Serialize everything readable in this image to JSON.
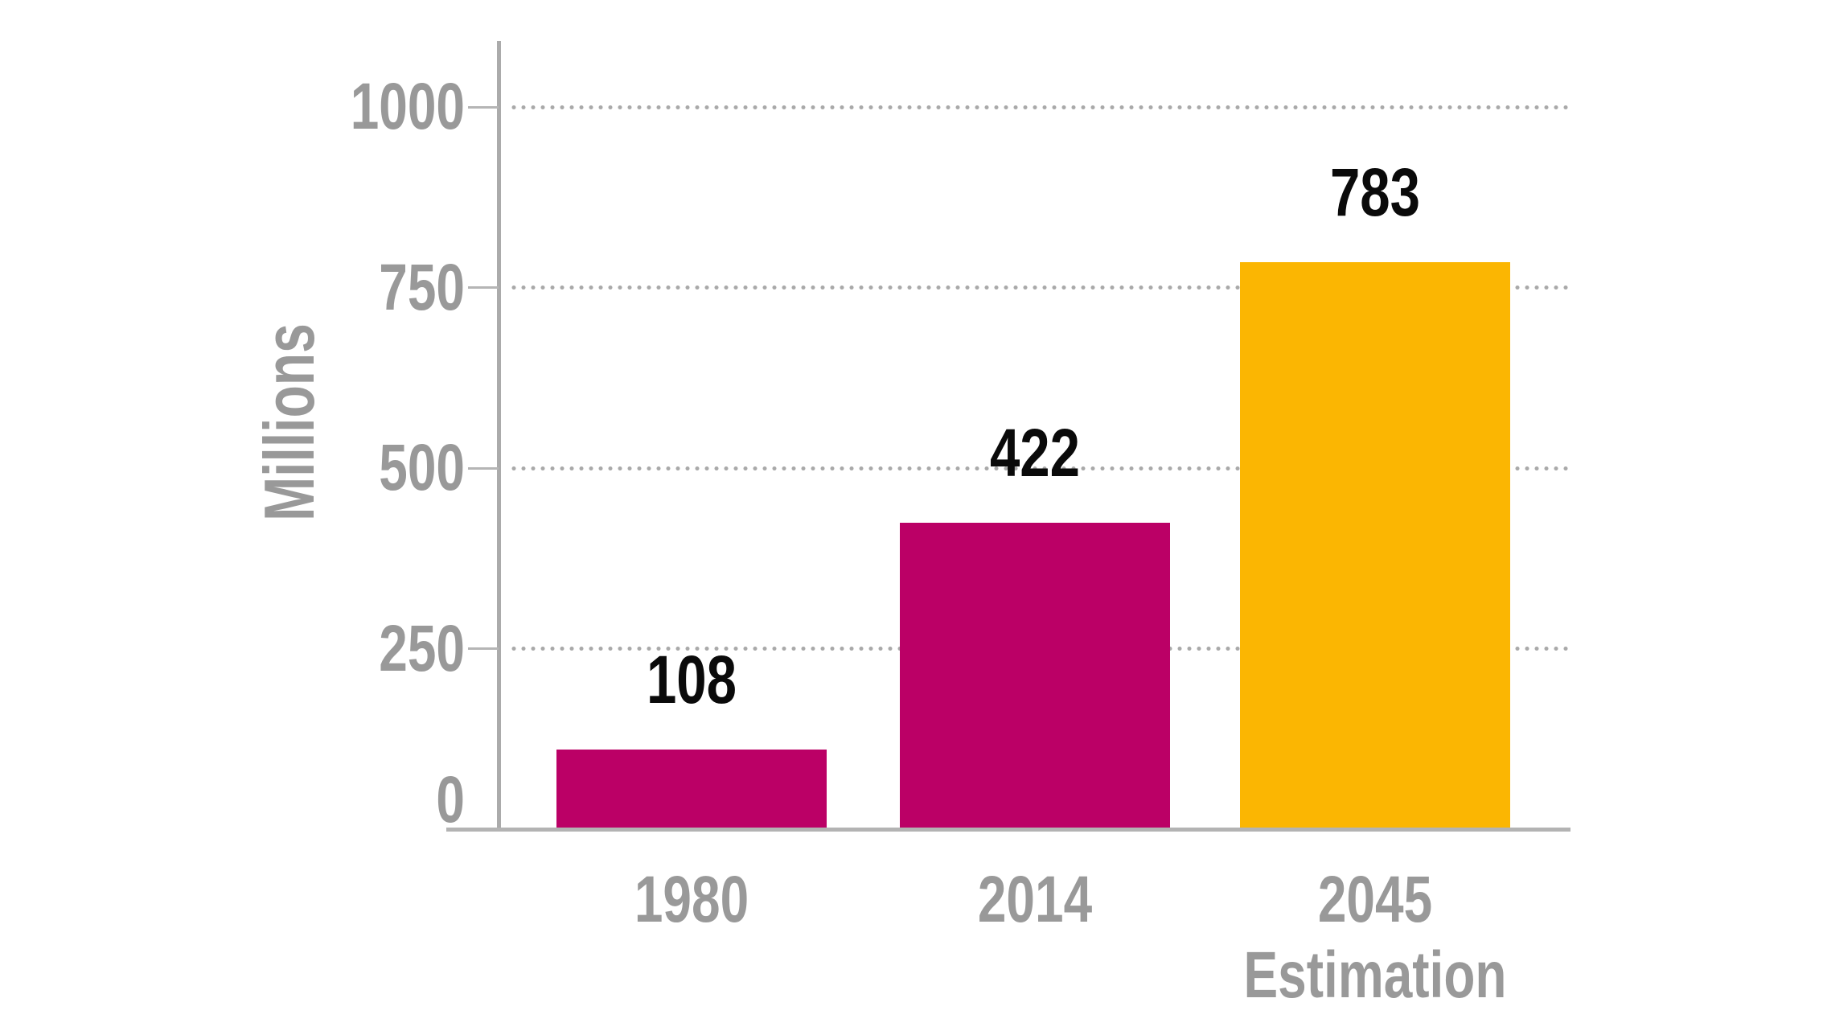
{
  "chart_data": {
    "type": "bar",
    "title": "",
    "xlabel": "",
    "ylabel": "Millions",
    "categories": [
      "1980",
      "2014",
      "2045 Estimation"
    ],
    "values": [
      108,
      422,
      783
    ],
    "bars": [
      {
        "category_line1": "1980",
        "category_line2": "",
        "value": 108,
        "value_label": "108",
        "color": "#bb0066"
      },
      {
        "category_line1": "2014",
        "category_line2": "",
        "value": 422,
        "value_label": "422",
        "color": "#bb0066"
      },
      {
        "category_line1": "2045",
        "category_line2": "Estimation",
        "value": 783,
        "value_label": "783",
        "color": "#fbb602"
      }
    ],
    "ylim": [
      0,
      1000
    ],
    "yticks": [
      0,
      250,
      500,
      750,
      1000
    ],
    "ytick_labels": [
      "0",
      "250",
      "500",
      "750",
      "1000"
    ],
    "grid": "horizontal dotted gridlines at 250/500/750/1000",
    "legend": "none",
    "colors": {
      "bar_magenta": "#bb0066",
      "bar_amber": "#fbb602",
      "axis_text_gray": "#999999",
      "axis_line_gray": "#ababab",
      "value_label_black": "#0a0a0a",
      "background": "#ffffff"
    }
  }
}
